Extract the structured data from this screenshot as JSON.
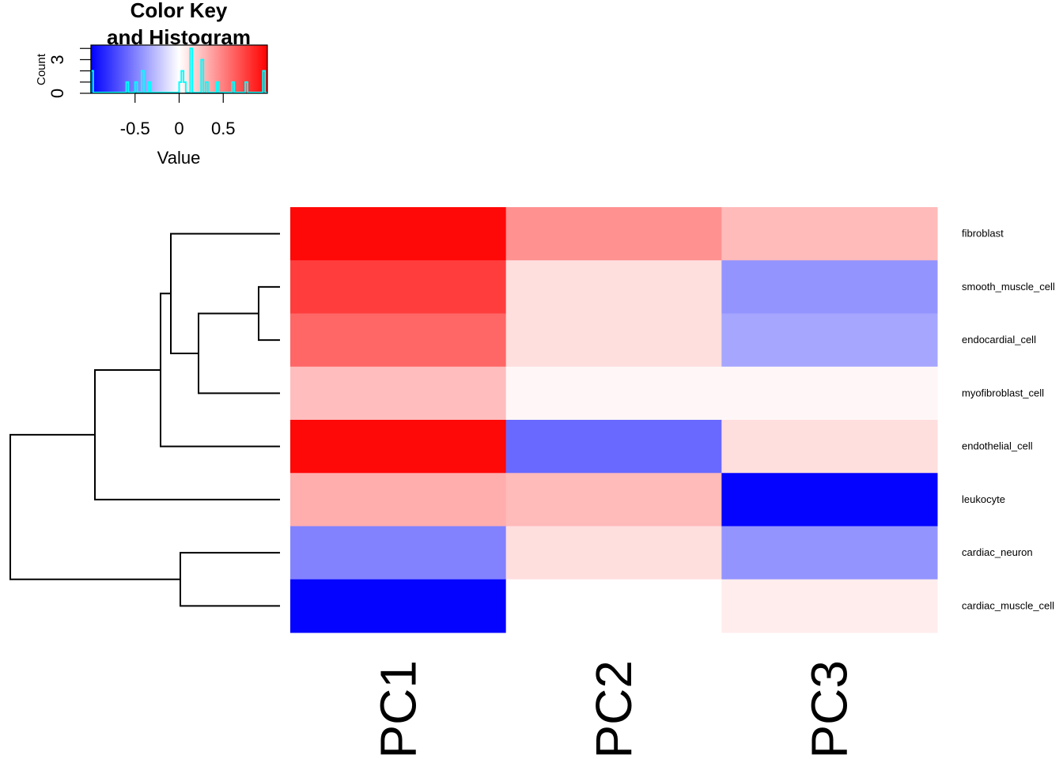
{
  "chart_data": {
    "type": "heatmap",
    "colors": {
      "low": "#0000ff",
      "mid": "#ffffff",
      "high": "#ff0000",
      "histogram": "#00ffff",
      "dendrogram": "#000000"
    },
    "columns": [
      "PC1",
      "PC2",
      "PC3"
    ],
    "rows": [
      "fibroblast",
      "smooth_muscle_cell",
      "endocardial_cell",
      "myofibroblast_cell",
      "endothelial_cell",
      "leukocyte",
      "cardiac_neuron",
      "cardiac_muscle_cell"
    ],
    "values": [
      [
        0.97,
        0.43,
        0.27
      ],
      [
        0.76,
        0.13,
        -0.42
      ],
      [
        0.6,
        0.13,
        -0.35
      ],
      [
        0.26,
        0.03,
        0.03
      ],
      [
        0.97,
        -0.59,
        0.13
      ],
      [
        0.32,
        0.27,
        -0.99
      ],
      [
        -0.49,
        0.13,
        -0.42
      ],
      [
        -0.99,
        0.0,
        0.07
      ]
    ],
    "dendrogram": "rows",
    "color_key": {
      "title_line1": "Color Key",
      "title_line2": "and Histogram",
      "xlabel": "Value",
      "ylabel": "Count",
      "xlim": [
        -1,
        1
      ],
      "xticks": [
        -0.5,
        0,
        0.5
      ],
      "xtick_labels": [
        "-0.5",
        "0",
        "0.5"
      ],
      "yticks": [
        0,
        3
      ],
      "ytick_labels": [
        "0",
        "3"
      ],
      "ylim": [
        0,
        4.3
      ]
    }
  }
}
